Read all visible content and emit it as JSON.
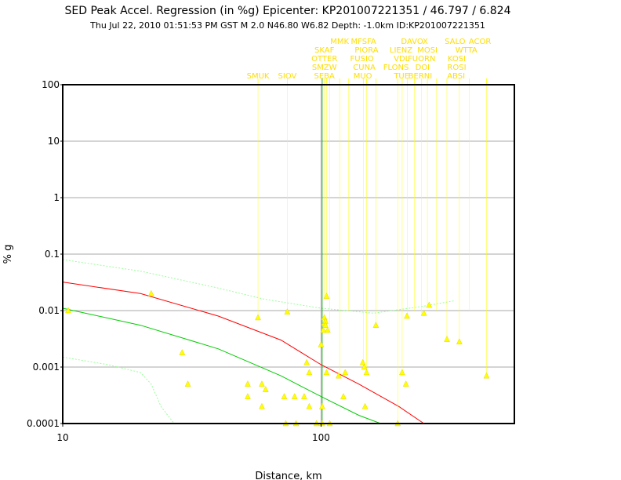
{
  "chart_data": {
    "type": "scatter",
    "title": "SED Peak Accel. Regression (in %g) Epicenter: KP201007221351 / 46.797 / 6.824",
    "subtitle": "Thu Jul 22, 2010 01:51:53 PM GST   M 2.0    N46.80 W6.82   Depth: -1.0km   ID:KP201007221351",
    "xlabel": "Distance, km",
    "ylabel": "% g",
    "x_scale": "log",
    "y_scale": "log",
    "xlim": [
      10,
      560
    ],
    "ylim": [
      0.0001,
      100
    ],
    "x_tick_labels": [
      "10",
      "100"
    ],
    "y_tick_labels": [
      "100",
      "10",
      "1",
      "0.1",
      "0.01",
      "0.001",
      "0.0001"
    ],
    "grid": true,
    "colors": {
      "points": "#ffff00",
      "station_labels": "#ffdd00",
      "mean_curve": "#ff0000",
      "median_curve": "#00cc00",
      "upper_curve": "#99ff99",
      "lower_curve": "#99ff99",
      "epicenter_line": "#009900"
    },
    "curves": {
      "red": [
        [
          10,
          0.032
        ],
        [
          20,
          0.02
        ],
        [
          40,
          0.008
        ],
        [
          70,
          0.003
        ],
        [
          100,
          0.0011
        ],
        [
          140,
          0.0005
        ],
        [
          200,
          0.0002
        ],
        [
          250,
          0.0001
        ]
      ],
      "green": [
        [
          10,
          0.011
        ],
        [
          20,
          0.0055
        ],
        [
          40,
          0.0021
        ],
        [
          70,
          0.0007
        ],
        [
          100,
          0.0003
        ],
        [
          140,
          0.00014
        ],
        [
          170,
          0.0001
        ]
      ],
      "upper": [
        [
          10,
          0.08
        ],
        [
          20,
          0.05
        ],
        [
          40,
          0.025
        ],
        [
          60,
          0.016
        ],
        [
          100,
          0.011
        ],
        [
          160,
          0.009
        ],
        [
          250,
          0.012
        ],
        [
          330,
          0.015
        ]
      ],
      "lower": [
        [
          10,
          0.0015
        ],
        [
          15,
          0.0011
        ],
        [
          20,
          0.0008
        ],
        [
          22,
          0.0005
        ],
        [
          24,
          0.0002
        ],
        [
          27,
          0.0001
        ]
      ]
    },
    "points": [
      {
        "x": 10.5,
        "y": 0.01
      },
      {
        "x": 22,
        "y": 0.02
      },
      {
        "x": 29,
        "y": 0.0018
      },
      {
        "x": 30.5,
        "y": 0.0005
      },
      {
        "x": 52,
        "y": 0.0005
      },
      {
        "x": 52,
        "y": 0.0003
      },
      {
        "x": 57,
        "y": 0.0075
      },
      {
        "x": 59,
        "y": 0.0005
      },
      {
        "x": 59,
        "y": 0.0002
      },
      {
        "x": 61,
        "y": 0.0004
      },
      {
        "x": 72,
        "y": 0.0003
      },
      {
        "x": 73,
        "y": 0.0001
      },
      {
        "x": 74,
        "y": 0.0095
      },
      {
        "x": 79,
        "y": 0.0003
      },
      {
        "x": 80,
        "y": 0.0001
      },
      {
        "x": 86,
        "y": 0.0003
      },
      {
        "x": 88,
        "y": 0.0012
      },
      {
        "x": 90,
        "y": 0.0008
      },
      {
        "x": 90,
        "y": 0.0002
      },
      {
        "x": 96,
        "y": 0.0001
      },
      {
        "x": 100,
        "y": 0.0025
      },
      {
        "x": 101,
        "y": 0.0002
      },
      {
        "x": 101,
        "y": 0.0001
      },
      {
        "x": 102,
        "y": 0.0045
      },
      {
        "x": 103,
        "y": 0.0075
      },
      {
        "x": 103,
        "y": 0.006
      },
      {
        "x": 104,
        "y": 0.0065
      },
      {
        "x": 104,
        "y": 0.0055
      },
      {
        "x": 105,
        "y": 0.018
      },
      {
        "x": 105,
        "y": 0.0008
      },
      {
        "x": 106,
        "y": 0.0045
      },
      {
        "x": 108,
        "y": 0.0001
      },
      {
        "x": 117,
        "y": 0.0007
      },
      {
        "x": 122,
        "y": 0.0003
      },
      {
        "x": 124,
        "y": 0.0008
      },
      {
        "x": 145,
        "y": 0.0012
      },
      {
        "x": 147,
        "y": 0.001
      },
      {
        "x": 148,
        "y": 0.0002
      },
      {
        "x": 150,
        "y": 0.0008
      },
      {
        "x": 163,
        "y": 0.0055
      },
      {
        "x": 198,
        "y": 0.0001
      },
      {
        "x": 206,
        "y": 0.0008
      },
      {
        "x": 213,
        "y": 0.0005
      },
      {
        "x": 215,
        "y": 0.008
      },
      {
        "x": 250,
        "y": 0.009
      },
      {
        "x": 262,
        "y": 0.0125
      },
      {
        "x": 307,
        "y": 0.0031
      },
      {
        "x": 343,
        "y": 0.0028
      },
      {
        "x": 437,
        "y": 0.0007
      }
    ],
    "stations": [
      {
        "label": "SMUK",
        "x": 57,
        "row": 4
      },
      {
        "label": "SIOV",
        "x": 74,
        "row": 4
      },
      {
        "label": "SKAF",
        "x": 103,
        "row": 1
      },
      {
        "label": "OTTER",
        "x": 103,
        "row": 2
      },
      {
        "label": "SMZW",
        "x": 103,
        "row": 3
      },
      {
        "label": "SEBA",
        "x": 103,
        "row": 4
      },
      {
        "label": "MMK",
        "x": 118,
        "row": 0
      },
      {
        "label": "MFSFA",
        "x": 146,
        "row": 0
      },
      {
        "label": "PIORA",
        "x": 150,
        "row": 1
      },
      {
        "label": "FUSIO",
        "x": 144,
        "row": 2
      },
      {
        "label": "CUNA",
        "x": 147,
        "row": 3
      },
      {
        "label": "MUO",
        "x": 145,
        "row": 4
      },
      {
        "label": "DAVOX",
        "x": 230,
        "row": 0
      },
      {
        "label": "LIENZ",
        "x": 204,
        "row": 1
      },
      {
        "label": "VDL",
        "x": 205,
        "row": 2
      },
      {
        "label": "FLONS",
        "x": 195,
        "row": 3
      },
      {
        "label": "TUE",
        "x": 205,
        "row": 4
      },
      {
        "label": "MOSI",
        "x": 258,
        "row": 1
      },
      {
        "label": "FUORN",
        "x": 245,
        "row": 2
      },
      {
        "label": "DOI",
        "x": 247,
        "row": 3
      },
      {
        "label": "BERNI",
        "x": 242,
        "row": 4
      },
      {
        "label": "SALO",
        "x": 330,
        "row": 0
      },
      {
        "label": "ACOR",
        "x": 412,
        "row": 0
      },
      {
        "label": "WTTA",
        "x": 365,
        "row": 1
      },
      {
        "label": "KOSI",
        "x": 335,
        "row": 2
      },
      {
        "label": "ROSI",
        "x": 335,
        "row": 3
      },
      {
        "label": "ABSI",
        "x": 333,
        "row": 4
      }
    ],
    "station_lines": [
      57,
      74,
      103,
      105,
      108,
      118,
      128,
      146,
      150,
      163,
      198,
      206,
      216,
      230,
      245,
      258,
      280,
      307,
      343,
      375,
      437
    ],
    "epicenter_x": 101
  }
}
